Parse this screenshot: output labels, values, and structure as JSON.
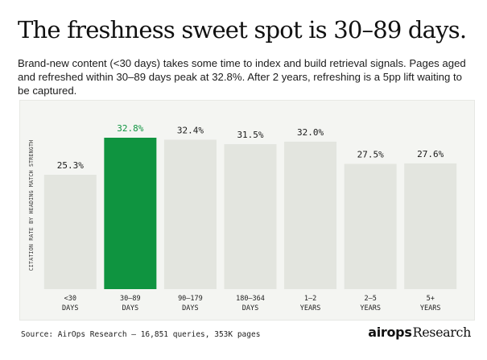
{
  "header": {
    "title": "The freshness sweet spot is 30–89 days.",
    "subtitle": "Brand-new content (<30 days) takes some time to index and build retrieval signals. Pages aged and refreshed within 30–89 days peak at 32.8%. After 2 years, refreshing is a 5pp lift waiting to be captured."
  },
  "footer": {
    "source": "Source: AirOps Research — 16,851 queries, 353K pages",
    "logo_mark": "airops",
    "logo_text": "Research"
  },
  "colors": {
    "highlight": "#0f9440",
    "bar": "#e3e5df",
    "panel": "#f4f5f2"
  },
  "chart_data": {
    "type": "bar",
    "title": "",
    "xlabel": "",
    "ylabel": "CITATION RATE BY HEADING MATCH STRENGTH",
    "categories": [
      [
        "<30",
        "DAYS"
      ],
      [
        "30–89",
        "DAYS"
      ],
      [
        "90–179",
        "DAYS"
      ],
      [
        "180–364",
        "DAYS"
      ],
      [
        "1–2",
        "YEARS"
      ],
      [
        "2–5",
        "YEARS"
      ],
      [
        "5+",
        "YEARS"
      ]
    ],
    "values": [
      25.3,
      32.8,
      32.4,
      31.5,
      32.0,
      27.5,
      27.6
    ],
    "data_labels": [
      "25.3%",
      "32.8%",
      "32.4%",
      "31.5%",
      "32.0%",
      "27.5%",
      "27.6%"
    ],
    "highlight_index": 1,
    "ylim": [
      0,
      32.8
    ],
    "grid": false,
    "legend": "none"
  }
}
